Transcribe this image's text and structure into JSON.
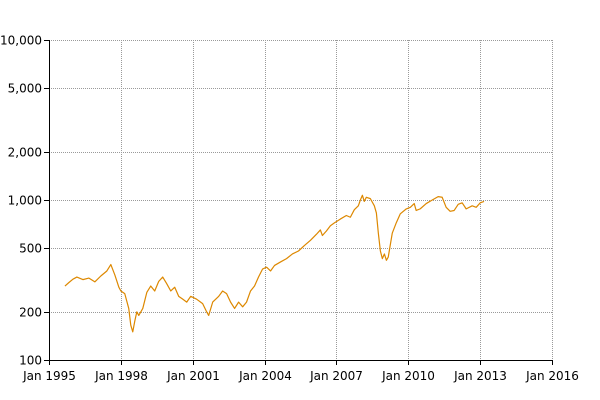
{
  "chart_data": {
    "type": "line",
    "title": "",
    "xlabel": "",
    "ylabel": "",
    "y_scale": "log",
    "grid": true,
    "legend": "none",
    "xlim": [
      "1995-01-01",
      "2016-01-01"
    ],
    "ylim": [
      100,
      10000
    ],
    "x_ticks": [
      {
        "date": "1995-01-01",
        "label": "Jan 1995"
      },
      {
        "date": "1998-01-01",
        "label": "Jan 1998"
      },
      {
        "date": "2001-01-01",
        "label": "Jan 2001"
      },
      {
        "date": "2004-01-01",
        "label": "Jan 2004"
      },
      {
        "date": "2007-01-01",
        "label": "Jan 2007"
      },
      {
        "date": "2010-01-01",
        "label": "Jan 2010"
      },
      {
        "date": "2013-01-01",
        "label": "Jan 2013"
      },
      {
        "date": "2016-01-01",
        "label": "Jan 2016"
      }
    ],
    "y_ticks": [
      {
        "value": 100,
        "label": "100"
      },
      {
        "value": 200,
        "label": "200"
      },
      {
        "value": 500,
        "label": "500"
      },
      {
        "value": 1000,
        "label": "1,000"
      },
      {
        "value": 2000,
        "label": "2,000"
      },
      {
        "value": 5000,
        "label": "5,000"
      },
      {
        "value": 10000,
        "label": "10,000"
      }
    ],
    "series": [
      {
        "color": "#dd8800",
        "points": [
          [
            "1995-09-01",
            290
          ],
          [
            "1995-11-01",
            305
          ],
          [
            "1996-01-01",
            320
          ],
          [
            "1996-03-01",
            330
          ],
          [
            "1996-06-01",
            318
          ],
          [
            "1996-09-01",
            325
          ],
          [
            "1996-12-01",
            308
          ],
          [
            "1997-03-01",
            335
          ],
          [
            "1997-06-01",
            360
          ],
          [
            "1997-08-01",
            395
          ],
          [
            "1997-10-01",
            340
          ],
          [
            "1997-12-01",
            285
          ],
          [
            "1998-01-01",
            270
          ],
          [
            "1998-03-01",
            260
          ],
          [
            "1998-05-01",
            210
          ],
          [
            "1998-06-01",
            165
          ],
          [
            "1998-07-01",
            150
          ],
          [
            "1998-08-01",
            175
          ],
          [
            "1998-09-01",
            200
          ],
          [
            "1998-10-01",
            190
          ],
          [
            "1998-12-01",
            210
          ],
          [
            "1999-02-01",
            265
          ],
          [
            "1999-04-01",
            290
          ],
          [
            "1999-06-01",
            270
          ],
          [
            "1999-08-01",
            310
          ],
          [
            "1999-10-01",
            330
          ],
          [
            "1999-12-01",
            300
          ],
          [
            "2000-02-01",
            270
          ],
          [
            "2000-04-01",
            285
          ],
          [
            "2000-06-01",
            250
          ],
          [
            "2000-08-01",
            240
          ],
          [
            "2000-10-01",
            230
          ],
          [
            "2000-12-01",
            250
          ],
          [
            "2001-03-01",
            240
          ],
          [
            "2001-06-01",
            225
          ],
          [
            "2001-08-01",
            200
          ],
          [
            "2001-09-01",
            190
          ],
          [
            "2001-11-01",
            230
          ],
          [
            "2002-02-01",
            250
          ],
          [
            "2002-04-01",
            270
          ],
          [
            "2002-06-01",
            260
          ],
          [
            "2002-08-01",
            230
          ],
          [
            "2002-10-01",
            210
          ],
          [
            "2002-12-01",
            230
          ],
          [
            "2003-02-01",
            215
          ],
          [
            "2003-04-01",
            230
          ],
          [
            "2003-06-01",
            270
          ],
          [
            "2003-08-01",
            290
          ],
          [
            "2003-10-01",
            330
          ],
          [
            "2003-12-01",
            370
          ],
          [
            "2004-02-01",
            380
          ],
          [
            "2004-04-01",
            360
          ],
          [
            "2004-06-01",
            390
          ],
          [
            "2004-09-01",
            410
          ],
          [
            "2004-12-01",
            430
          ],
          [
            "2005-03-01",
            460
          ],
          [
            "2005-06-01",
            480
          ],
          [
            "2005-09-01",
            520
          ],
          [
            "2005-12-01",
            560
          ],
          [
            "2006-03-01",
            610
          ],
          [
            "2006-05-01",
            650
          ],
          [
            "2006-06-01",
            600
          ],
          [
            "2006-08-01",
            640
          ],
          [
            "2006-10-01",
            690
          ],
          [
            "2006-12-01",
            720
          ],
          [
            "2007-03-01",
            760
          ],
          [
            "2007-06-01",
            800
          ],
          [
            "2007-08-01",
            780
          ],
          [
            "2007-10-01",
            870
          ],
          [
            "2007-12-01",
            920
          ],
          [
            "2008-01-01",
            1000
          ],
          [
            "2008-02-01",
            1070
          ],
          [
            "2008-03-01",
            980
          ],
          [
            "2008-04-01",
            1040
          ],
          [
            "2008-06-01",
            1020
          ],
          [
            "2008-08-01",
            920
          ],
          [
            "2008-09-01",
            830
          ],
          [
            "2008-10-01",
            620
          ],
          [
            "2008-11-01",
            480
          ],
          [
            "2008-12-01",
            430
          ],
          [
            "2009-01-01",
            460
          ],
          [
            "2009-02-01",
            420
          ],
          [
            "2009-03-01",
            440
          ],
          [
            "2009-05-01",
            620
          ],
          [
            "2009-07-01",
            720
          ],
          [
            "2009-09-01",
            820
          ],
          [
            "2009-12-01",
            880
          ],
          [
            "2010-02-01",
            900
          ],
          [
            "2010-04-01",
            950
          ],
          [
            "2010-05-01",
            860
          ],
          [
            "2010-07-01",
            880
          ],
          [
            "2010-10-01",
            950
          ],
          [
            "2011-01-01",
            1000
          ],
          [
            "2011-04-01",
            1050
          ],
          [
            "2011-06-01",
            1040
          ],
          [
            "2011-08-01",
            900
          ],
          [
            "2011-10-01",
            850
          ],
          [
            "2011-12-01",
            860
          ],
          [
            "2012-02-01",
            940
          ],
          [
            "2012-04-01",
            960
          ],
          [
            "2012-06-01",
            880
          ],
          [
            "2012-09-01",
            920
          ],
          [
            "2012-11-01",
            900
          ],
          [
            "2013-01-01",
            960
          ],
          [
            "2013-03-01",
            980
          ]
        ]
      }
    ]
  }
}
